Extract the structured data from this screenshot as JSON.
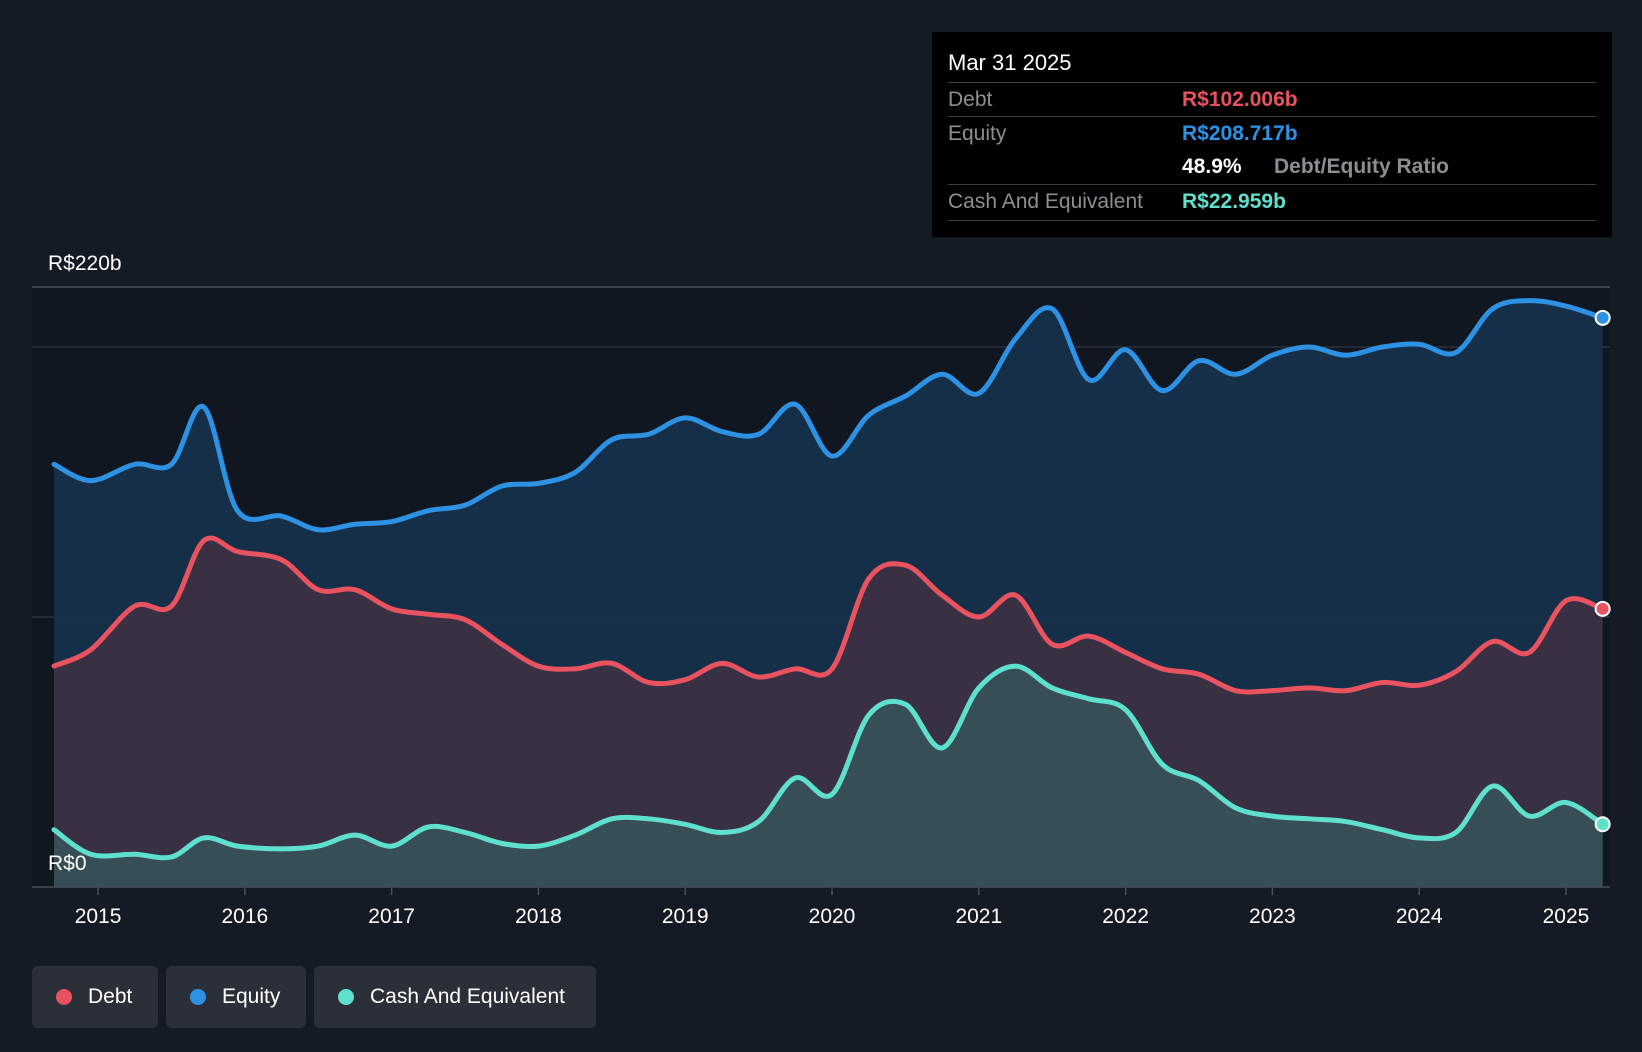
{
  "chart_data": {
    "type": "area",
    "title": "",
    "xlabel": "",
    "ylabel": "",
    "ylim": [
      0,
      220
    ],
    "y_unit": "R$ billions",
    "y_axis_labels": {
      "top": "R$220b",
      "bottom": "R$0"
    },
    "x_tick_labels": [
      "2015",
      "2016",
      "2017",
      "2018",
      "2019",
      "2020",
      "2021",
      "2022",
      "2023",
      "2024",
      "2025"
    ],
    "x_ticks": [
      2015,
      2016,
      2017,
      2018,
      2019,
      2020,
      2021,
      2022,
      2023,
      2024,
      2025
    ],
    "xlim": [
      2014.55,
      2025.3
    ],
    "series": [
      {
        "name": "Equity",
        "color": "#2d91e4",
        "points": [
          [
            2014.7,
            155
          ],
          [
            2014.95,
            149
          ],
          [
            2015.25,
            155
          ],
          [
            2015.5,
            155
          ],
          [
            2015.72,
            176
          ],
          [
            2015.95,
            138
          ],
          [
            2016.25,
            136
          ],
          [
            2016.5,
            131
          ],
          [
            2016.75,
            133
          ],
          [
            2017.0,
            134
          ],
          [
            2017.25,
            138
          ],
          [
            2017.5,
            140
          ],
          [
            2017.75,
            147
          ],
          [
            2018.0,
            148
          ],
          [
            2018.25,
            152
          ],
          [
            2018.5,
            164
          ],
          [
            2018.75,
            166
          ],
          [
            2019.0,
            172
          ],
          [
            2019.25,
            167
          ],
          [
            2019.5,
            166
          ],
          [
            2019.75,
            177
          ],
          [
            2020.0,
            158
          ],
          [
            2020.25,
            173
          ],
          [
            2020.5,
            180
          ],
          [
            2020.75,
            188
          ],
          [
            2021.0,
            181
          ],
          [
            2021.25,
            201
          ],
          [
            2021.5,
            212
          ],
          [
            2021.75,
            186
          ],
          [
            2022.0,
            197
          ],
          [
            2022.25,
            182
          ],
          [
            2022.5,
            193
          ],
          [
            2022.75,
            188
          ],
          [
            2023.0,
            195
          ],
          [
            2023.25,
            198
          ],
          [
            2023.5,
            195
          ],
          [
            2023.75,
            198
          ],
          [
            2024.0,
            199
          ],
          [
            2024.25,
            196
          ],
          [
            2024.5,
            212
          ],
          [
            2024.75,
            215
          ],
          [
            2025.0,
            213
          ],
          [
            2025.25,
            208.7
          ]
        ]
      },
      {
        "name": "Debt",
        "color": "#e8535f",
        "points": [
          [
            2014.7,
            81
          ],
          [
            2014.95,
            87
          ],
          [
            2015.25,
            103
          ],
          [
            2015.5,
            103
          ],
          [
            2015.72,
            127
          ],
          [
            2015.95,
            123
          ],
          [
            2016.25,
            120
          ],
          [
            2016.5,
            109
          ],
          [
            2016.75,
            109
          ],
          [
            2017.0,
            102
          ],
          [
            2017.25,
            100
          ],
          [
            2017.5,
            98
          ],
          [
            2017.75,
            89
          ],
          [
            2018.0,
            81
          ],
          [
            2018.25,
            80
          ],
          [
            2018.5,
            82
          ],
          [
            2018.75,
            75
          ],
          [
            2019.0,
            76
          ],
          [
            2019.25,
            82
          ],
          [
            2019.5,
            77
          ],
          [
            2019.75,
            80
          ],
          [
            2020.0,
            80
          ],
          [
            2020.25,
            113
          ],
          [
            2020.5,
            118
          ],
          [
            2020.75,
            107
          ],
          [
            2021.0,
            99
          ],
          [
            2021.25,
            107
          ],
          [
            2021.5,
            89
          ],
          [
            2021.75,
            92
          ],
          [
            2022.0,
            86
          ],
          [
            2022.25,
            80
          ],
          [
            2022.5,
            78
          ],
          [
            2022.75,
            72
          ],
          [
            2023.0,
            72
          ],
          [
            2023.25,
            73
          ],
          [
            2023.5,
            72
          ],
          [
            2023.75,
            75
          ],
          [
            2024.0,
            74
          ],
          [
            2024.25,
            79
          ],
          [
            2024.5,
            90
          ],
          [
            2024.75,
            86
          ],
          [
            2025.0,
            105
          ],
          [
            2025.25,
            102
          ]
        ]
      },
      {
        "name": "Cash And Equivalent",
        "color": "#5fe0cd",
        "points": [
          [
            2014.7,
            21
          ],
          [
            2014.95,
            12
          ],
          [
            2015.25,
            12
          ],
          [
            2015.5,
            11
          ],
          [
            2015.72,
            18
          ],
          [
            2015.95,
            15
          ],
          [
            2016.25,
            14
          ],
          [
            2016.5,
            15
          ],
          [
            2016.75,
            19
          ],
          [
            2017.0,
            15
          ],
          [
            2017.25,
            22
          ],
          [
            2017.5,
            20
          ],
          [
            2017.75,
            16
          ],
          [
            2018.0,
            15
          ],
          [
            2018.25,
            19
          ],
          [
            2018.5,
            25
          ],
          [
            2018.75,
            25
          ],
          [
            2019.0,
            23
          ],
          [
            2019.25,
            20
          ],
          [
            2019.5,
            24
          ],
          [
            2019.75,
            40
          ],
          [
            2020.0,
            34
          ],
          [
            2020.25,
            63
          ],
          [
            2020.5,
            67
          ],
          [
            2020.75,
            51
          ],
          [
            2021.0,
            73
          ],
          [
            2021.25,
            81
          ],
          [
            2021.5,
            73
          ],
          [
            2021.75,
            69
          ],
          [
            2022.0,
            65
          ],
          [
            2022.25,
            45
          ],
          [
            2022.5,
            39
          ],
          [
            2022.75,
            29
          ],
          [
            2023.0,
            26
          ],
          [
            2023.25,
            25
          ],
          [
            2023.5,
            24
          ],
          [
            2023.75,
            21
          ],
          [
            2024.0,
            18
          ],
          [
            2024.25,
            20
          ],
          [
            2024.5,
            37
          ],
          [
            2024.75,
            26
          ],
          [
            2025.0,
            31
          ],
          [
            2025.25,
            23
          ]
        ]
      }
    ]
  },
  "tooltip": {
    "date": "Mar 31 2025",
    "debt_label": "Debt",
    "debt_value": "R$102.006b",
    "equity_label": "Equity",
    "equity_value": "R$208.717b",
    "ratio_value": "48.9%",
    "ratio_label": "Debt/Equity Ratio",
    "cash_label": "Cash And Equivalent",
    "cash_value": "R$22.959b"
  },
  "legend": [
    {
      "label": "Debt",
      "color": "#e8535f"
    },
    {
      "label": "Equity",
      "color": "#2d91e4"
    },
    {
      "label": "Cash And Equivalent",
      "color": "#5fe0cd"
    }
  ]
}
